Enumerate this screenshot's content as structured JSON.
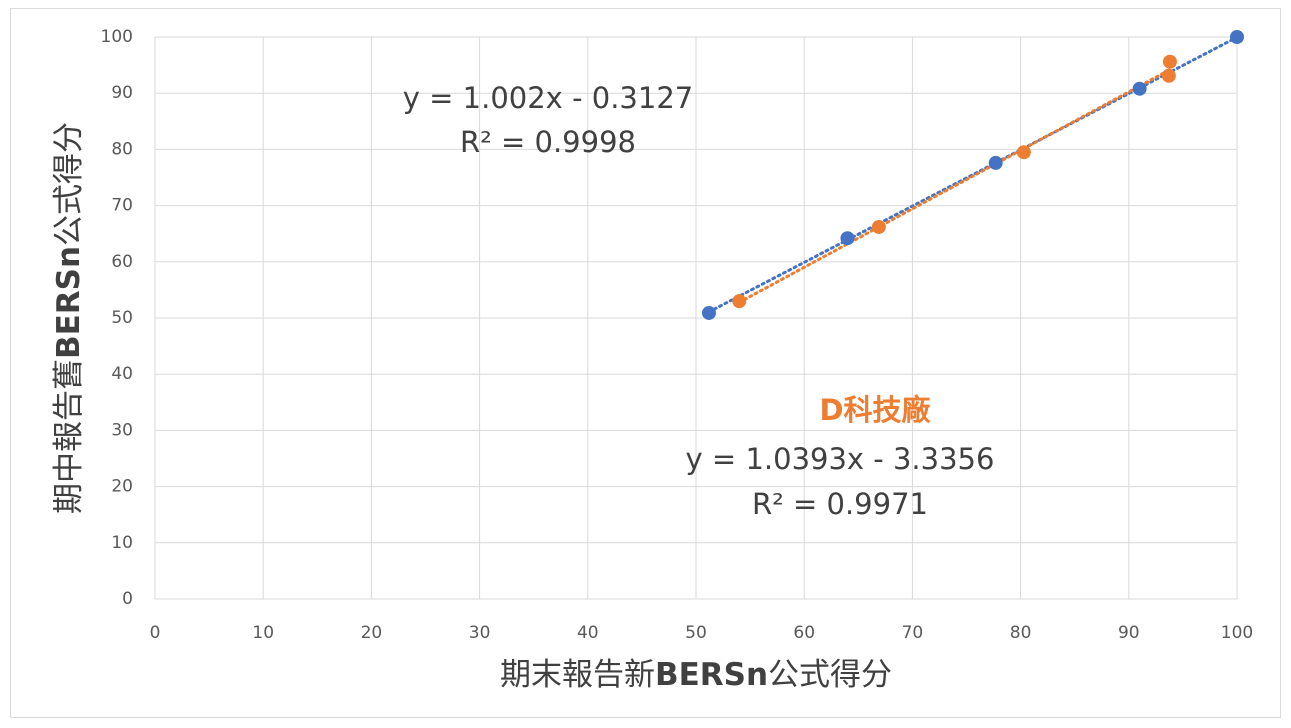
{
  "chart_data": {
    "type": "scatter",
    "xlabel": [
      {
        "text": "期末報告新"
      },
      {
        "text": "BERSn",
        "bold": true
      },
      {
        "text": "公式得分"
      }
    ],
    "ylabel": [
      {
        "text": "期中報告舊"
      },
      {
        "text": "BERSn",
        "bold": true
      },
      {
        "text": "公式得分"
      }
    ],
    "xlim": [
      0,
      100
    ],
    "xticks": [
      0,
      10,
      20,
      30,
      40,
      50,
      60,
      70,
      80,
      90,
      100
    ],
    "ylim": [
      0,
      100
    ],
    "yticks": [
      0,
      10,
      20,
      30,
      40,
      50,
      60,
      70,
      80,
      90,
      100
    ],
    "grid": true,
    "series": [
      {
        "color": "#4472c4",
        "x": [
          51.2,
          64.0,
          77.7,
          91.0,
          100
        ],
        "values": [
          50.9,
          64.2,
          77.6,
          90.8,
          100
        ],
        "trendline": {
          "equation": "y = 1.002x - 0.3127",
          "r2": "R² = 0.9998"
        }
      },
      {
        "name": "D科技廠",
        "color": "#ed7d31",
        "x": [
          54.0,
          66.9,
          80.3,
          93.7,
          93.8
        ],
        "values": [
          53.0,
          66.2,
          79.5,
          93.1,
          95.6
        ],
        "trendline": {
          "equation": "y = 1.0393x - 3.3356",
          "r2": "R² = 0.9971"
        }
      }
    ]
  }
}
